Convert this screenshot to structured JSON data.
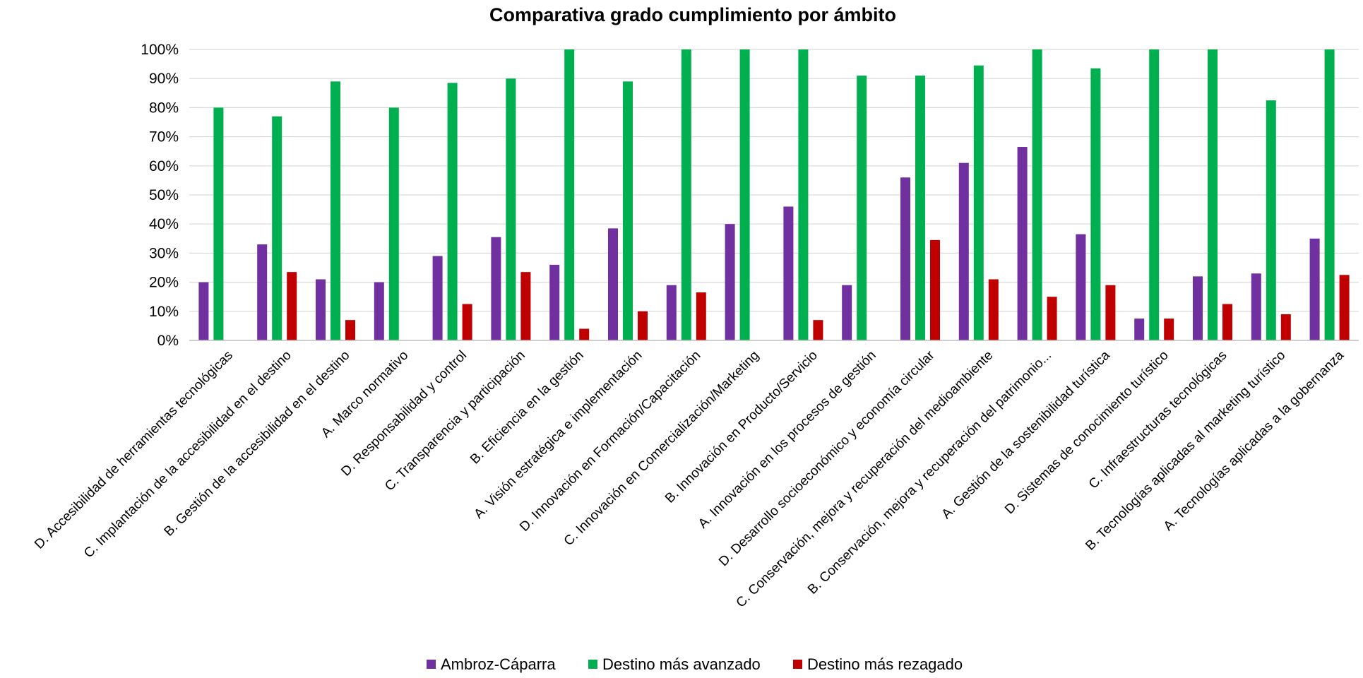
{
  "chart_data": {
    "type": "bar",
    "title": "Comparativa grado cumplimiento por ámbito",
    "xlabel": "",
    "ylabel": "",
    "ylim": [
      0,
      1
    ],
    "y_ticks": [
      "0%",
      "10%",
      "20%",
      "30%",
      "40%",
      "50%",
      "60%",
      "70%",
      "80%",
      "90%",
      "100%"
    ],
    "grid": true,
    "legend_position": "bottom",
    "categories": [
      "D. Accesibilidad de herramientas tecnológicas",
      "C. Implantación de la accesibilidad en el destino",
      "B. Gestión de la accesibilidad en el destino",
      "A. Marco normativo",
      "D. Responsabilidad y control",
      "C. Transparencia y participación",
      "B. Eficiencia en la gestión",
      "A. Visión estratégica e implementación",
      "D. Innovación en Formación/Capacitación",
      "C. Innovación en Comercialización/Marketing",
      "B. Innovación en Producto/Servicio",
      "A. Innovación en los procesos de gestión",
      "D. Desarrollo socioeconómico y economía circular",
      "C. Conservación, mejora y recuperación del medioambiente",
      "B. Conservación, mejora y recuperación del patrimonio...",
      "A. Gestión de la sostenibilidad turística",
      "D. Sistemas de conocimiento turístico",
      "C. Infraestructuras tecnológicas",
      "B. Tecnologías aplicadas al marketing turístico",
      "A. Tecnologías aplicadas a la gobernanza"
    ],
    "series": [
      {
        "name": "Ambroz-Cáparra",
        "color": "#7030a0",
        "values": [
          0.2,
          0.33,
          0.21,
          0.2,
          0.29,
          0.355,
          0.26,
          0.385,
          0.19,
          0.4,
          0.46,
          0.19,
          0.56,
          0.61,
          0.665,
          0.365,
          0.075,
          0.22,
          0.23,
          0.35
        ]
      },
      {
        "name": "Destino más avanzado",
        "color": "#00b050",
        "values": [
          0.8,
          0.77,
          0.89,
          0.8,
          0.885,
          0.9,
          1.0,
          0.89,
          1.0,
          1.0,
          1.0,
          0.91,
          0.91,
          0.945,
          1.0,
          0.935,
          1.0,
          1.0,
          0.825,
          1.0
        ]
      },
      {
        "name": "Destino más rezagado",
        "color": "#c00000",
        "values": [
          0,
          0.235,
          0.07,
          0,
          0.125,
          0.235,
          0.04,
          0.1,
          0.165,
          0,
          0.07,
          0,
          0.345,
          0.21,
          0.15,
          0.19,
          0.075,
          0.125,
          0.09,
          0.225
        ]
      }
    ]
  }
}
